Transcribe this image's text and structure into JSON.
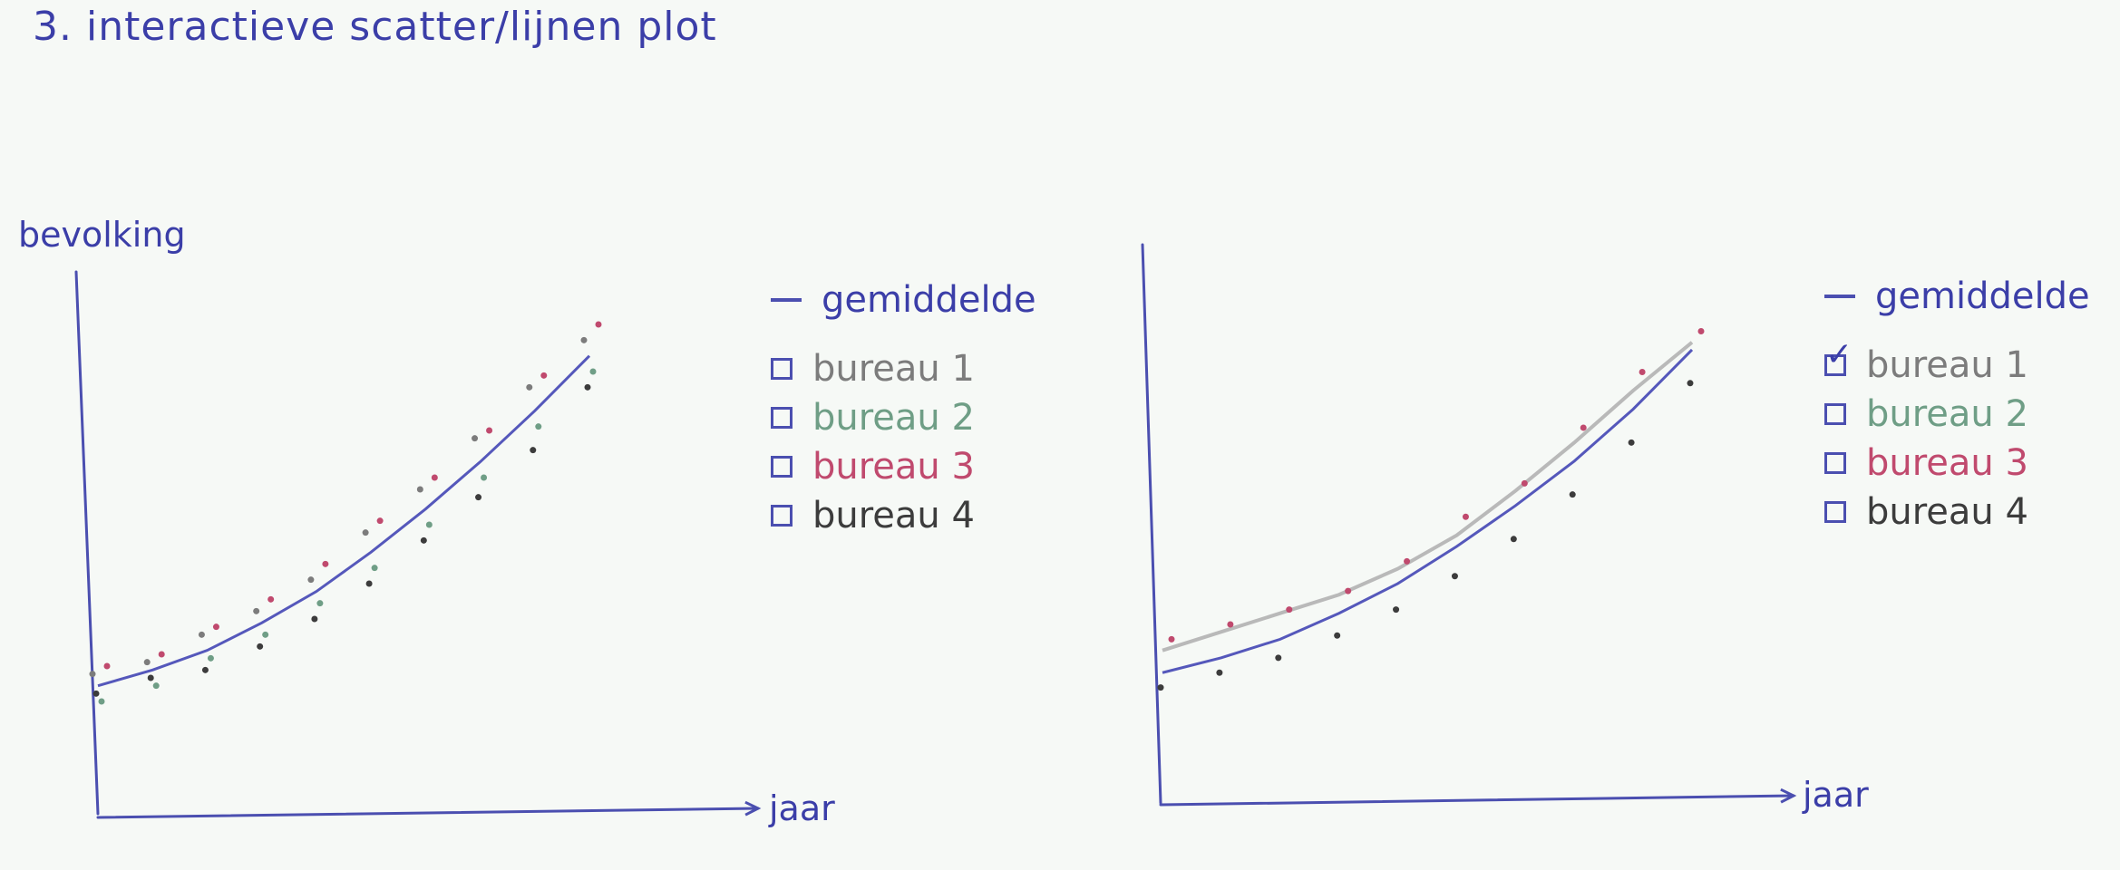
{
  "title": "3. interactieve scatter/lijnen plot",
  "colors": {
    "axis": "#4b4fb0",
    "average": "#5558bb",
    "selected_line": "#b9b9b9",
    "bureau1": "#7c7c7c",
    "bureau2": "#6f9e86",
    "bureau3": "#c04a6e",
    "bureau4": "#3c3c3c"
  },
  "chart_data": [
    {
      "type": "scatter",
      "xlabel": "jaar",
      "ylabel": "bevolking",
      "x": [
        0,
        1,
        2,
        3,
        4,
        5,
        6,
        7,
        8,
        9
      ],
      "series": [
        {
          "name": "gemiddelde",
          "kind": "line",
          "values": [
            10,
            14,
            19,
            26,
            34,
            44,
            55,
            67,
            80,
            94
          ]
        },
        {
          "name": "bureau 1",
          "kind": "points",
          "values": [
            13,
            16,
            23,
            29,
            37,
            49,
            60,
            73,
            86,
            98
          ]
        },
        {
          "name": "bureau 2",
          "kind": "points",
          "values": [
            6,
            10,
            17,
            23,
            31,
            40,
            51,
            63,
            76,
            90
          ]
        },
        {
          "name": "bureau 3",
          "kind": "points",
          "values": [
            15,
            18,
            25,
            32,
            41,
            52,
            63,
            75,
            89,
            102
          ]
        },
        {
          "name": "bureau 4",
          "kind": "points",
          "values": [
            8,
            12,
            14,
            20,
            27,
            36,
            47,
            58,
            70,
            86
          ]
        }
      ],
      "legend": {
        "average_label": "gemiddelde",
        "items": [
          {
            "label": "bureau 1",
            "checked": false,
            "color": "#7c7c7c"
          },
          {
            "label": "bureau 2",
            "checked": false,
            "color": "#6f9e86"
          },
          {
            "label": "bureau 3",
            "checked": false,
            "color": "#c04a6e"
          },
          {
            "label": "bureau 4",
            "checked": false,
            "color": "#3c3c3c"
          }
        ]
      }
    },
    {
      "type": "line",
      "xlabel": "jaar",
      "ylabel": "",
      "x": [
        0,
        1,
        2,
        3,
        4,
        5,
        6,
        7,
        8,
        9
      ],
      "series": [
        {
          "name": "gemiddelde",
          "kind": "line",
          "values": [
            8,
            12,
            17,
            24,
            32,
            42,
            53,
            65,
            79,
            95
          ]
        },
        {
          "name": "bureau 1",
          "kind": "line",
          "values": [
            14,
            19,
            24,
            29,
            36,
            45,
            57,
            70,
            84,
            97
          ]
        },
        {
          "name": "bureau 3",
          "kind": "points",
          "values": [
            17,
            21,
            25,
            30,
            38,
            50,
            59,
            74,
            89,
            100
          ]
        },
        {
          "name": "bureau 4",
          "kind": "points",
          "values": [
            4,
            8,
            12,
            18,
            25,
            34,
            44,
            56,
            70,
            86
          ]
        }
      ],
      "legend": {
        "average_label": "gemiddelde",
        "items": [
          {
            "label": "bureau 1",
            "checked": true,
            "color": "#7c7c7c"
          },
          {
            "label": "bureau 2",
            "checked": false,
            "color": "#6f9e86"
          },
          {
            "label": "bureau 3",
            "checked": false,
            "color": "#c04a6e"
          },
          {
            "label": "bureau 4",
            "checked": false,
            "color": "#3c3c3c"
          }
        ]
      }
    }
  ]
}
